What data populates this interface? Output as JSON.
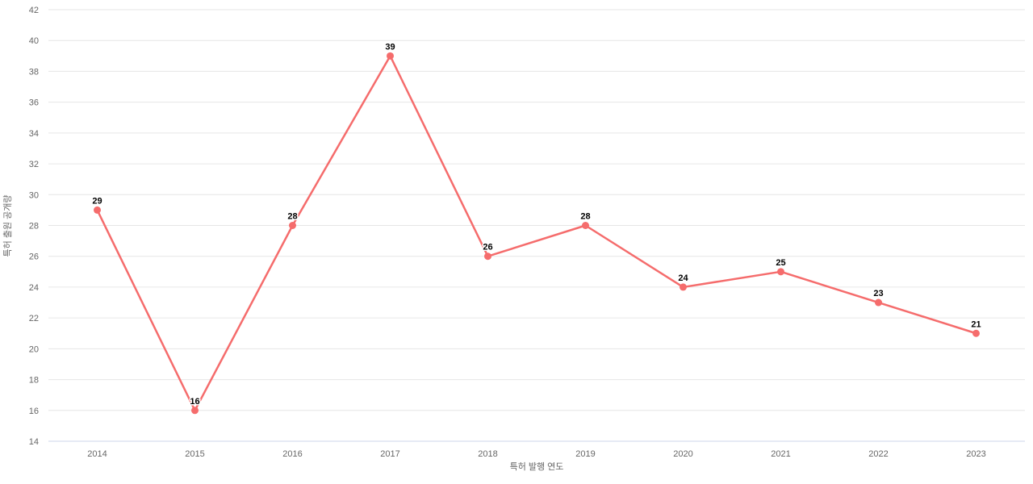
{
  "chart_data": {
    "type": "line",
    "title": "",
    "xlabel": "특허 발행 연도",
    "ylabel": "특허 출원 공개량",
    "categories": [
      "2014",
      "2015",
      "2016",
      "2017",
      "2018",
      "2019",
      "2020",
      "2021",
      "2022",
      "2023"
    ],
    "series": [
      {
        "name": "특허 출원 공개량",
        "values": [
          29,
          16,
          28,
          39,
          26,
          28,
          24,
          25,
          23,
          21
        ]
      }
    ],
    "ylim": [
      14,
      42
    ],
    "ytick_step": 2,
    "grid": true,
    "legend": false,
    "colors": {
      "line": "#f56c6c",
      "marker": "#f56c6c",
      "gridline": "#e6e6e6",
      "x_axis_line": "#ccd6eb",
      "tick_label": "#666666",
      "axis_title": "#666666",
      "data_label": "#000000",
      "background": "#ffffff"
    }
  }
}
